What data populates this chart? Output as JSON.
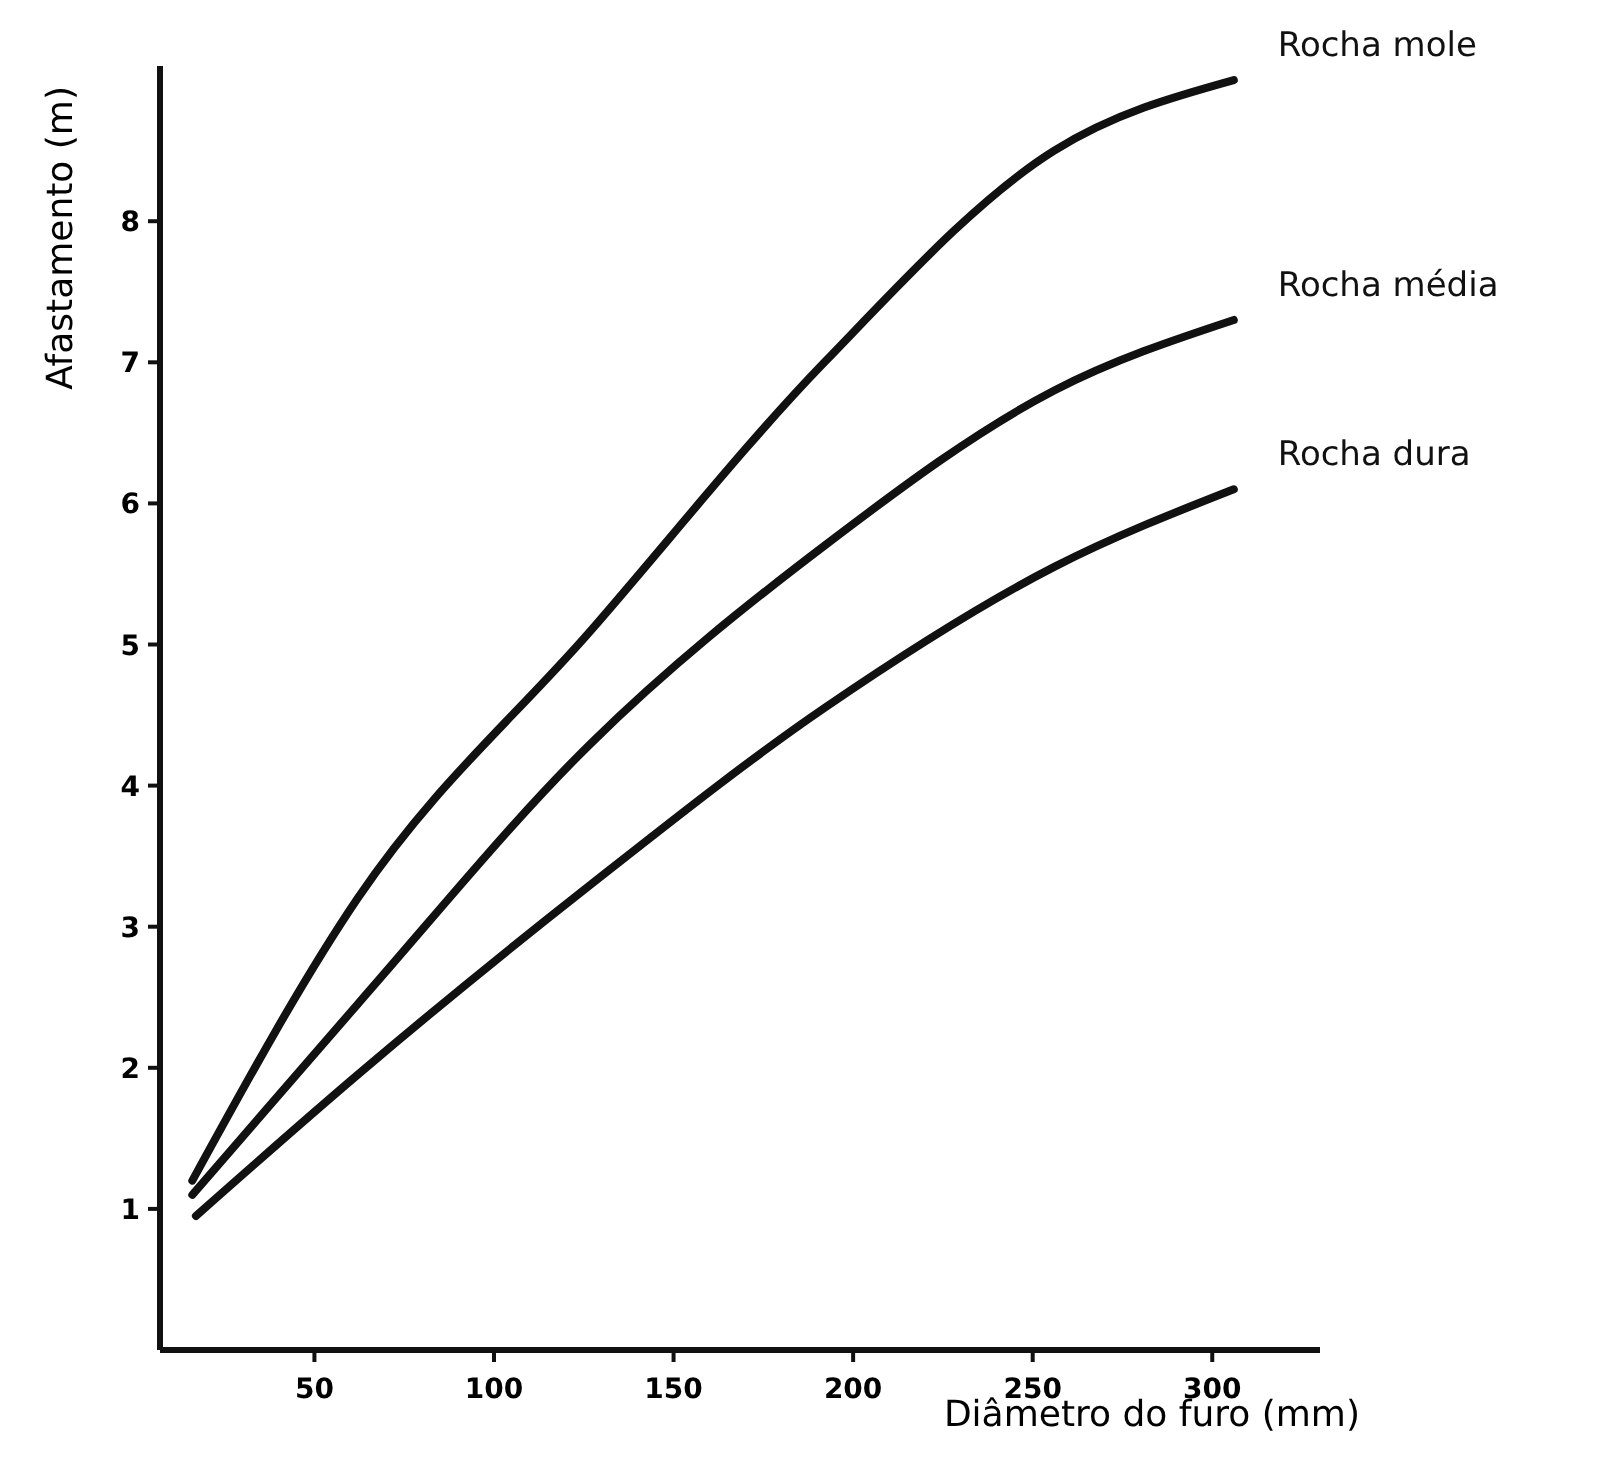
{
  "chart_data": {
    "type": "line",
    "xlabel": "Diâmetro do furo (mm)",
    "ylabel": "Afastamento (m)",
    "xlim": [
      7,
      330
    ],
    "ylim": [
      0,
      9.1
    ],
    "xticks": [
      50,
      100,
      150,
      200,
      250,
      300
    ],
    "yticks": [
      1,
      2,
      3,
      4,
      5,
      6,
      7,
      8
    ],
    "grid": false,
    "legend": false,
    "marker": "none",
    "line_style": "solid",
    "series": [
      {
        "name": "Rocha mole",
        "color": "#111111",
        "x": [
          16,
          62,
          127,
          192,
          256,
          306
        ],
        "values": [
          1.2,
          3.2,
          5.1,
          7.0,
          8.5,
          9.0
        ]
      },
      {
        "name": "Rocha média",
        "color": "#111111",
        "x": [
          16,
          62,
          127,
          192,
          256,
          306
        ],
        "values": [
          1.1,
          2.45,
          4.3,
          5.7,
          6.8,
          7.3
        ]
      },
      {
        "name": "Rocha dura",
        "color": "#111111",
        "x": [
          17,
          62,
          127,
          192,
          256,
          306
        ],
        "values": [
          0.95,
          1.95,
          3.3,
          4.55,
          5.55,
          6.1
        ]
      }
    ]
  }
}
